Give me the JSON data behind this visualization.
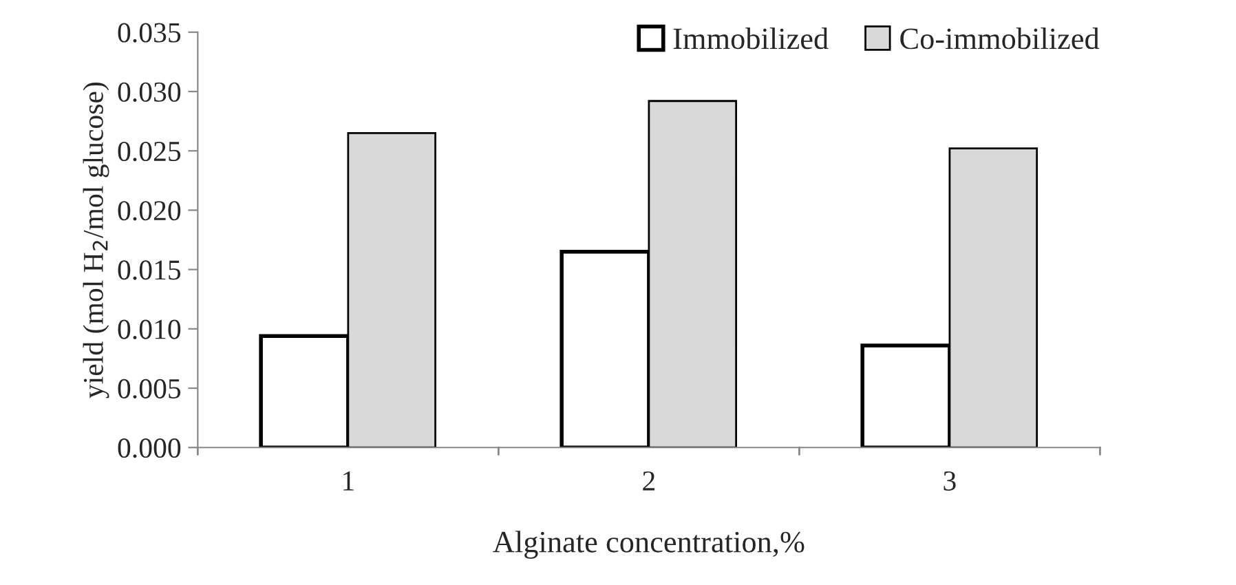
{
  "chart_data": {
    "type": "bar",
    "xlabel": "Alginate concentration,%",
    "ylabel": "yield (mol H$_{2}$/mol glucose)",
    "categories": [
      "1",
      "2",
      "3"
    ],
    "series": [
      {
        "name": "Immobilized",
        "color": "#ffffff",
        "values": [
          0.0094,
          0.0165,
          0.0086
        ]
      },
      {
        "name": "Co-immobilized",
        "color": "#d9d9d9",
        "values": [
          0.0265,
          0.0292,
          0.0252
        ]
      }
    ],
    "ylim": [
      0,
      0.035
    ],
    "yticks": [
      {
        "value": 0,
        "label": "0.000"
      },
      {
        "value": 0.005,
        "label": "0.005"
      },
      {
        "value": 0.01,
        "label": "0.010"
      },
      {
        "value": 0.015,
        "label": "0.015"
      },
      {
        "value": 0.02,
        "label": "0.020"
      },
      {
        "value": 0.025,
        "label": "0.025"
      },
      {
        "value": 0.03,
        "label": "0.030"
      },
      {
        "value": 0.035,
        "label": "0.035"
      }
    ],
    "grid": false,
    "legend": "top right"
  }
}
